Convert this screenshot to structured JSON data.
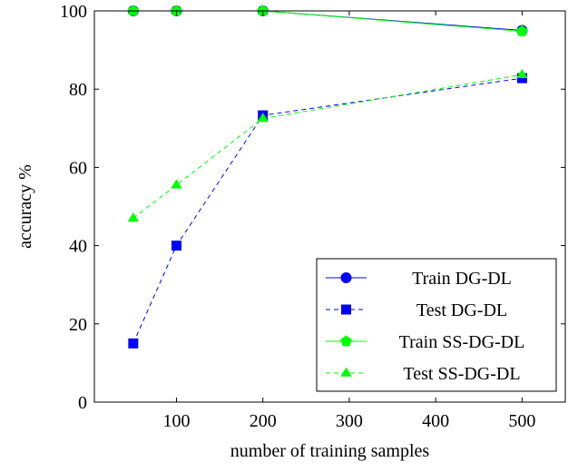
{
  "chart_data": {
    "type": "line",
    "title": "",
    "xlabel": "number of training samples",
    "ylabel": "accuracy %",
    "xlim": [
      5,
      550
    ],
    "ylim": [
      0,
      100
    ],
    "xticks": [
      100,
      200,
      300,
      400,
      500
    ],
    "yticks": [
      0,
      20,
      40,
      60,
      80,
      100
    ],
    "x": [
      50,
      100,
      200,
      500
    ],
    "grid": false,
    "legend_position": "bottom-right",
    "series": [
      {
        "name": "Train DG-DL",
        "values": [
          100,
          100,
          100,
          95
        ],
        "color": "#0000ff",
        "line_style": "solid",
        "marker": "circle"
      },
      {
        "name": "Test DG-DL",
        "values": [
          15,
          40,
          73.3,
          82.8
        ],
        "color": "#0000ff",
        "line_style": "dashed",
        "marker": "square"
      },
      {
        "name": "Train SS-DG-DL",
        "values": [
          100,
          100,
          100,
          94.8
        ],
        "color": "#00ff00",
        "line_style": "solid",
        "marker": "pentagon"
      },
      {
        "name": "Test SS-DG-DL",
        "values": [
          47,
          55.5,
          72.5,
          83.7
        ],
        "color": "#00ff00",
        "line_style": "dashed",
        "marker": "triangle"
      }
    ]
  }
}
